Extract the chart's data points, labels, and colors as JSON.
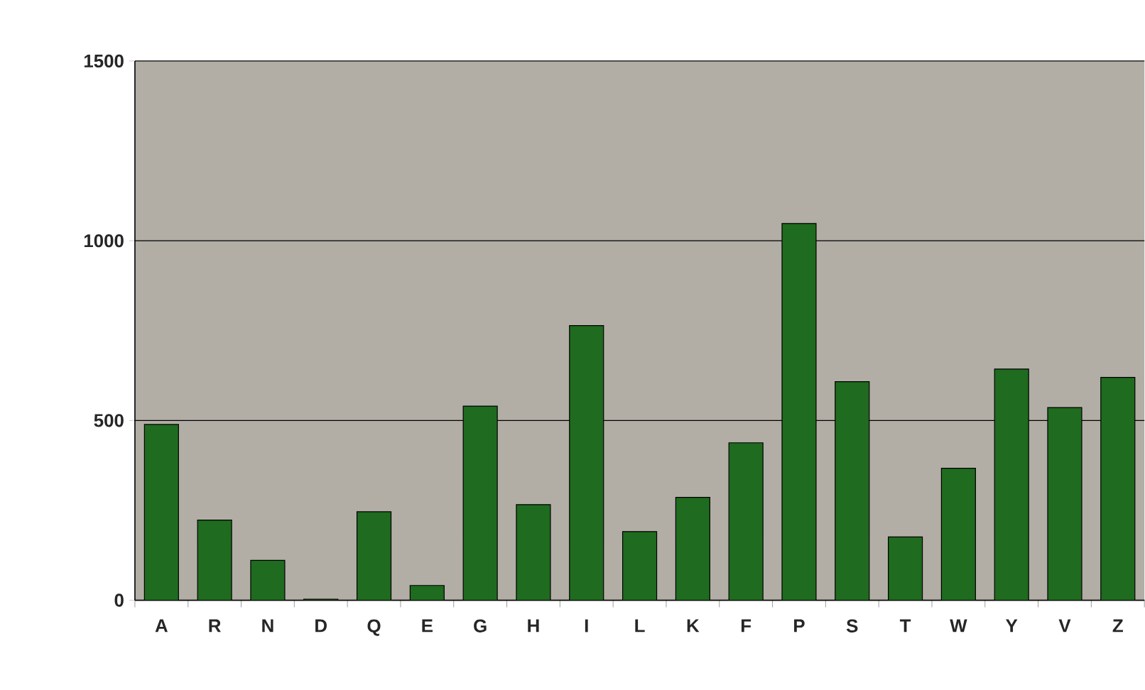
{
  "chart_data": {
    "type": "bar",
    "categories": [
      "A",
      "R",
      "N",
      "D",
      "Q",
      "E",
      "G",
      "H",
      "I",
      "L",
      "K",
      "F",
      "P",
      "S",
      "T",
      "W",
      "Y",
      "V",
      "Z"
    ],
    "values": [
      489,
      223,
      111,
      3,
      246,
      41,
      540,
      266,
      764,
      191,
      286,
      438,
      1048,
      608,
      176,
      367,
      643,
      536,
      620
    ],
    "color": "#1f6b1f",
    "ylim": [
      0,
      1500
    ],
    "yticks": [
      0,
      500,
      1000,
      1500
    ],
    "grid": "y"
  }
}
